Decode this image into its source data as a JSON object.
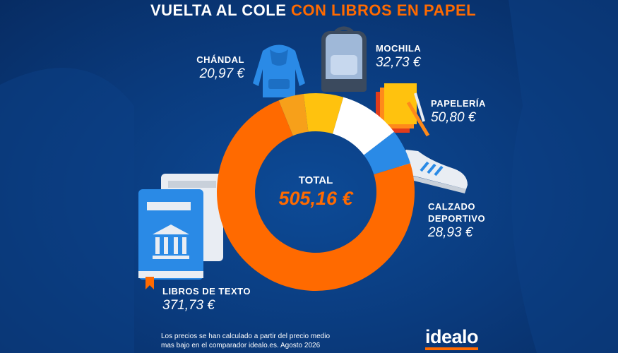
{
  "chart_data": {
    "type": "donut",
    "title": "VUELTA AL COLE",
    "title_highlight": "CON LIBROS EN PAPEL",
    "categories": [
      "CHÁNDAL",
      "MOCHILA",
      "PAPELERÍA",
      "CALZADO DEPORTIVO",
      "LIBROS DE TEXTO"
    ],
    "values": [
      20.97,
      32.73,
      50.8,
      28.93,
      371.73
    ],
    "value_labels": [
      "20,97 €",
      "32,73 €",
      "50,80 €",
      "28,93 €",
      "371,73 €"
    ],
    "colors": [
      "#f7a01a",
      "#ffc20e",
      "#ffffff",
      "#2a8ae6",
      "#ff6a00"
    ],
    "total_label": "TOTAL",
    "total": {
      "value": 505.16,
      "label": "505,16 €"
    },
    "note": "Los precios se han calculado a partir del precio medio mas bajo en el comparador idealo.es. Agosto 2026",
    "brand": "idealo"
  }
}
